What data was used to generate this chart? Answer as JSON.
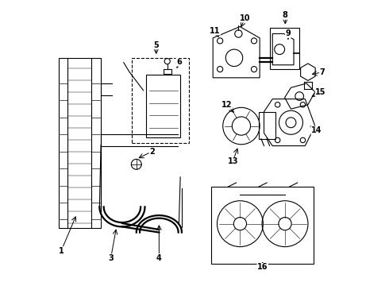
{
  "title": "",
  "background_color": "#ffffff",
  "line_color": "#000000",
  "label_color": "#000000",
  "fig_width": 4.9,
  "fig_height": 3.6,
  "dpi": 100
}
